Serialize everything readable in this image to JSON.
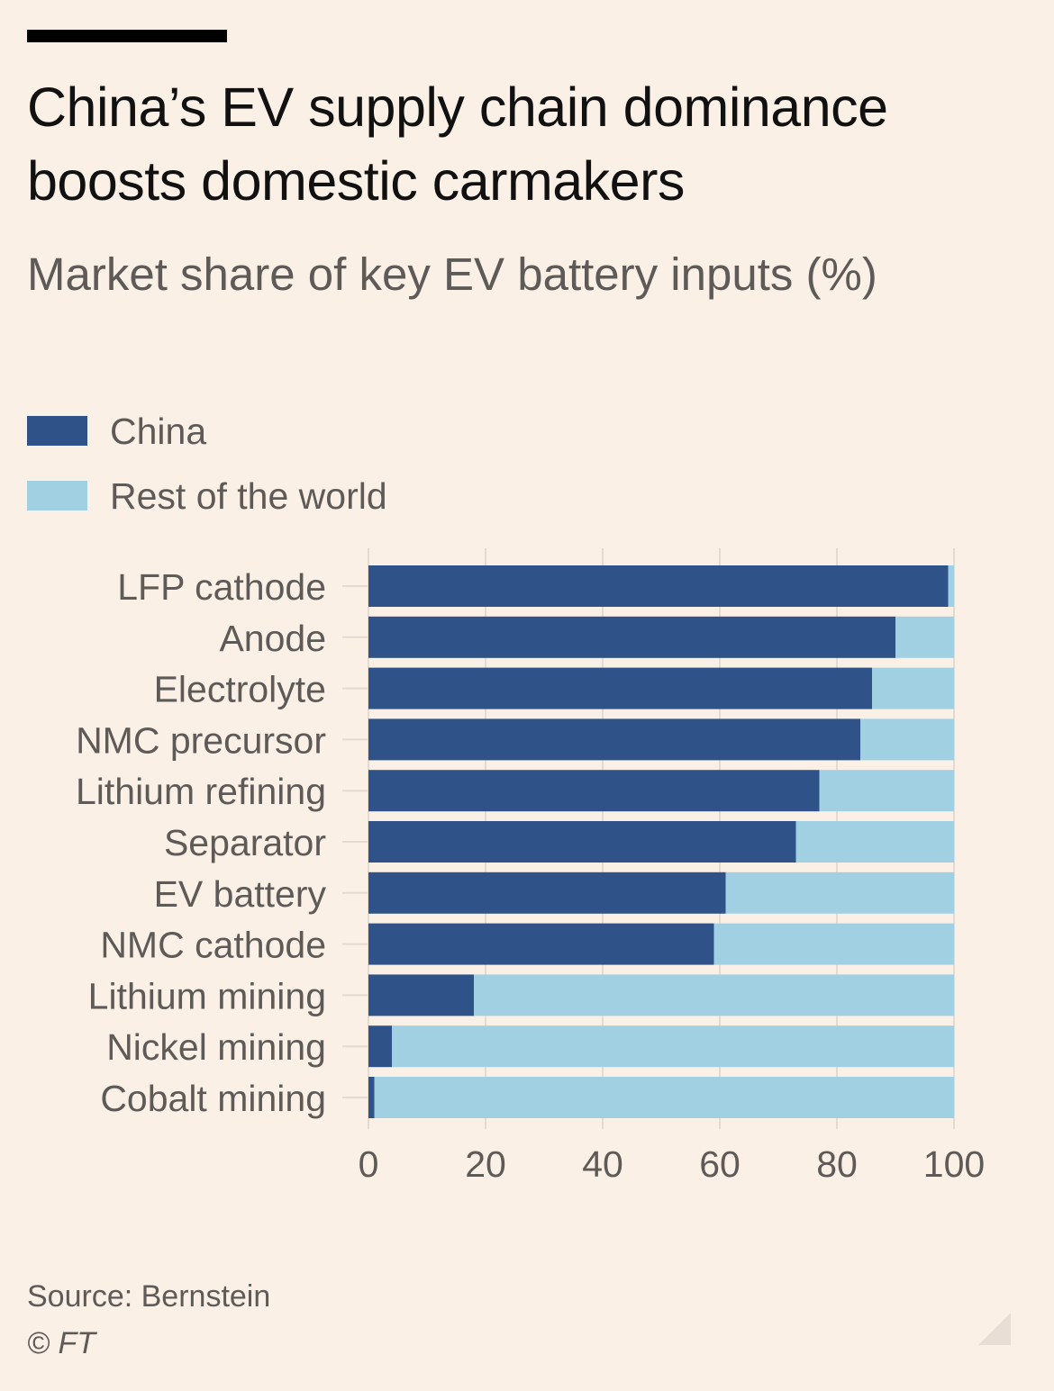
{
  "header": {
    "title": "China’s EV supply chain dominance boosts domestic carmakers",
    "subtitle": "Market share of key EV battery inputs (%)"
  },
  "legend": [
    {
      "label": "China",
      "color": "#2F5389"
    },
    {
      "label": "Rest of the world",
      "color": "#A2D0E3"
    }
  ],
  "footer": {
    "source": "Source: Bernstein",
    "credit": "© FT"
  },
  "colors": {
    "background": "#FBF0E6",
    "china": "#2F5389",
    "rest_of_world": "#A2D0E3",
    "gridline": "#E3DAD2",
    "tick_text": "#5E5A57"
  },
  "chart_data": {
    "type": "bar",
    "orientation": "horizontal",
    "stacked": true,
    "title": "China’s EV supply chain dominance boosts domestic carmakers",
    "subtitle": "Market share of key EV battery inputs (%)",
    "categories": [
      "LFP cathode",
      "Anode",
      "Electrolyte",
      "NMC precursor",
      "Lithium refining",
      "Separator",
      "EV battery",
      "NMC cathode",
      "Lithium mining",
      "Nickel mining",
      "Cobalt mining"
    ],
    "series": [
      {
        "name": "China",
        "values": [
          99,
          90,
          86,
          84,
          77,
          73,
          61,
          59,
          18,
          4,
          1
        ]
      },
      {
        "name": "Rest of the world",
        "values": [
          1,
          10,
          14,
          16,
          23,
          27,
          39,
          41,
          82,
          96,
          99
        ]
      }
    ],
    "xlim": [
      0,
      100
    ],
    "xticks": [
      0,
      20,
      40,
      60,
      80,
      100
    ],
    "grid": true,
    "legend_position": "top-left"
  }
}
